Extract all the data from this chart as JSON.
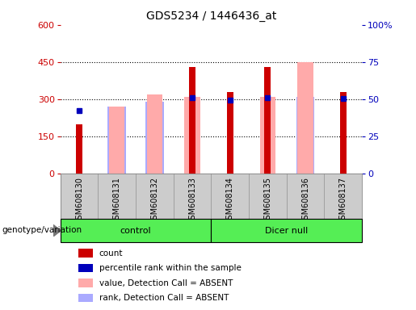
{
  "title": "GDS5234 / 1446436_at",
  "samples": [
    "GSM608130",
    "GSM608131",
    "GSM608132",
    "GSM608133",
    "GSM608134",
    "GSM608135",
    "GSM608136",
    "GSM608137"
  ],
  "count": [
    200,
    0,
    0,
    430,
    330,
    430,
    0,
    330
  ],
  "percentile_rank": [
    255,
    0,
    0,
    305,
    297,
    305,
    0,
    302
  ],
  "value_absent": [
    0,
    270,
    320,
    310,
    0,
    308,
    448,
    0
  ],
  "rank_absent_bar": [
    0,
    270,
    290,
    0,
    0,
    0,
    308,
    0
  ],
  "ylim_left": [
    0,
    600
  ],
  "ylim_right": [
    0,
    100
  ],
  "yticks_left": [
    0,
    150,
    300,
    450,
    600
  ],
  "yticks_right": [
    0,
    25,
    50,
    75,
    100
  ],
  "ytick_labels_right": [
    "0",
    "25",
    "50",
    "75",
    "100%"
  ],
  "bar_width": 0.35,
  "color_count": "#cc0000",
  "color_percentile": "#0000bb",
  "color_value_absent": "#ffaaaa",
  "color_rank_absent": "#aaaaff",
  "group_color": "#55ee55",
  "bg_color": "#cccccc",
  "plot_bg": "#ffffff",
  "left_axis_color": "#cc0000",
  "right_axis_color": "#0000bb",
  "control_samples": [
    0,
    1,
    2,
    3
  ],
  "dicernull_samples": [
    4,
    5,
    6,
    7
  ]
}
